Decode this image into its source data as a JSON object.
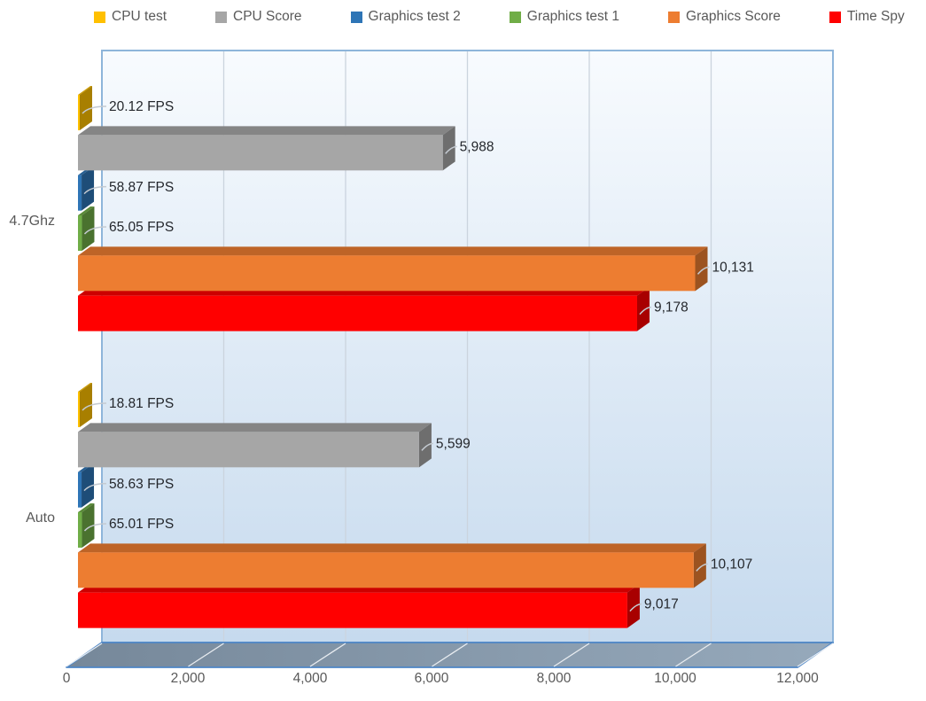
{
  "chart_data": {
    "type": "bar",
    "orientation": "horizontal",
    "style": "3d",
    "title": "",
    "legend_position": "top",
    "gridlines": true,
    "categories": [
      "4.7Ghz",
      "Auto"
    ],
    "series": [
      {
        "name": "CPU test",
        "color": "#FFC000",
        "values": [
          20.12,
          18.81
        ],
        "data_labels": [
          "20.12 FPS",
          "18.81 FPS"
        ]
      },
      {
        "name": "CPU Score",
        "color": "#A6A6A6",
        "values": [
          5988,
          5599
        ],
        "data_labels": [
          "5,988",
          "5,599"
        ]
      },
      {
        "name": "Graphics test 2",
        "color": "#2E75B6",
        "values": [
          58.87,
          58.63
        ],
        "data_labels": [
          "58.87 FPS",
          "58.63 FPS"
        ]
      },
      {
        "name": "Graphics test 1",
        "color": "#70AD47",
        "values": [
          65.05,
          65.01
        ],
        "data_labels": [
          "65.05 FPS",
          "65.01 FPS"
        ]
      },
      {
        "name": "Graphics Score",
        "color": "#ED7D31",
        "values": [
          10131,
          10107
        ],
        "data_labels": [
          "10,131",
          "10,107"
        ]
      },
      {
        "name": "Time Spy",
        "color": "#FF0000",
        "values": [
          9178,
          9017
        ],
        "data_labels": [
          "9,178",
          "9,017"
        ]
      }
    ],
    "x_axis": {
      "min": 0,
      "max": 12000,
      "tick_interval": 2000,
      "tick_labels": [
        "0",
        "2,000",
        "4,000",
        "6,000",
        "8,000",
        "10,000",
        "12,000"
      ]
    }
  },
  "colors": {
    "wall_top": "#F8FBFE",
    "wall_bottom": "#C6DAEE",
    "wall_border": "#8EB5DA",
    "wall_gridline": "#CBD4DE",
    "floor_left": "#76889A",
    "floor_right": "#96A9BB",
    "floor_border": "#4E86C6",
    "floor_gridline": "#E9EDF1",
    "axis_text": "#595959",
    "data_label_text": "#24272C",
    "leader_line": "#C4CAD1"
  }
}
